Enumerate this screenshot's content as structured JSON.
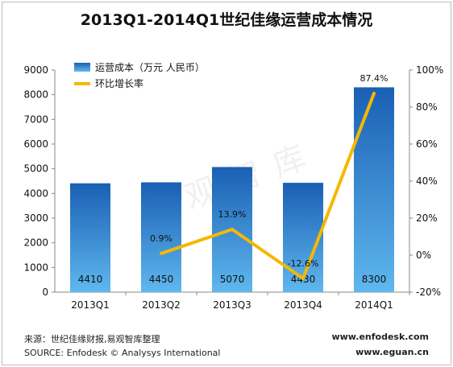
{
  "title": "2013Q1-2014Q1世纪佳缘运营成本情况",
  "footer": {
    "source_cn": "来源：世纪佳缘财报,易观智库整理",
    "source_en": "SOURCE: Enfodesk © Analysys International",
    "url1": "www.enfodesk.com",
    "url2": "www.eguan.cn"
  },
  "watermark": "易观智库",
  "colors": {
    "bar_top": "#1a5fb4",
    "bar_bottom": "#5fb8ee",
    "line": "#f5b800"
  },
  "chart_data": {
    "type": "bar",
    "categories": [
      "2013Q1",
      "2013Q2",
      "2013Q3",
      "2013Q4",
      "2014Q1"
    ],
    "series": [
      {
        "name": "运营成本（万元 人民币）",
        "type": "bar",
        "axis": "left",
        "values": [
          4410,
          4450,
          5070,
          4430,
          8300
        ]
      },
      {
        "name": "环比增长率",
        "type": "line",
        "axis": "right",
        "values": [
          null,
          0.9,
          13.9,
          -12.6,
          87.4
        ],
        "labels": [
          "",
          "0.9%",
          "13.9%",
          "-12.6%",
          "87.4%"
        ]
      }
    ],
    "y_left": {
      "min": 0,
      "max": 9000,
      "ticks": [
        "0",
        "1000",
        "2000",
        "3000",
        "4000",
        "5000",
        "6000",
        "7000",
        "8000",
        "9000"
      ]
    },
    "y_right": {
      "min": -20,
      "max": 100,
      "ticks": [
        "-20%",
        "0%",
        "20%",
        "40%",
        "60%",
        "80%",
        "100%"
      ]
    },
    "legend_position": "top-left",
    "grid": false
  }
}
